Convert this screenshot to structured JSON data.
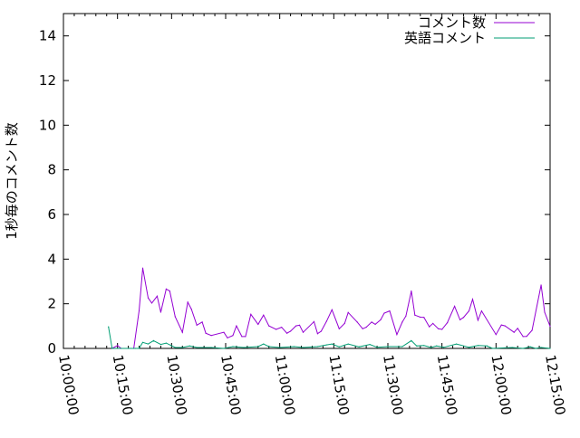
{
  "chart_data": {
    "type": "line",
    "title": "",
    "xlabel": "",
    "ylabel": "1秒毎のコメント数",
    "xlim": [
      "10:00:00",
      "12:15:00"
    ],
    "ylim": [
      0,
      15
    ],
    "xticks": [
      "10:00:00",
      "10:15:00",
      "10:30:00",
      "10:45:00",
      "11:00:00",
      "11:15:00",
      "11:30:00",
      "11:45:00",
      "12:00:00",
      "12:15:00"
    ],
    "yticks": [
      "0",
      "2",
      "4",
      "6",
      "8",
      "10",
      "12",
      "14"
    ],
    "grid": false,
    "legend_position": "top-right",
    "series": [
      {
        "name": "コメント数",
        "color": "#9400d3",
        "x": [
          "10:13:30",
          "10:15:00",
          "10:16:00",
          "10:18:00",
          "10:19:30",
          "10:21:00",
          "10:22:00",
          "10:23:30",
          "10:24:30",
          "10:26:00",
          "10:27:00",
          "10:28:30",
          "10:29:30",
          "10:31:00",
          "10:33:00",
          "10:34:30",
          "10:35:30",
          "10:37:00",
          "10:38:30",
          "10:39:30",
          "10:41:00",
          "10:44:30",
          "10:45:30",
          "10:47:00",
          "10:48:00",
          "10:49:30",
          "10:50:30",
          "10:52:00",
          "10:54:00",
          "10:55:30",
          "10:57:00",
          "10:59:00",
          "11:00:30",
          "11:02:00",
          "11:03:00",
          "11:04:30",
          "11:05:30",
          "11:06:30",
          "11:09:30",
          "11:10:30",
          "11:11:30",
          "11:13:00",
          "11:14:30",
          "11:16:30",
          "11:18:00",
          "11:19:00",
          "11:21:30",
          "11:23:00",
          "11:24:00",
          "11:25:30",
          "11:26:30",
          "11:28:00",
          "11:29:00",
          "11:30:30",
          "11:32:30",
          "11:34:00",
          "11:35:00",
          "11:36:30",
          "11:37:30",
          "11:39:00",
          "11:40:00",
          "11:41:30",
          "11:42:30",
          "11:44:00",
          "11:45:00",
          "11:46:30",
          "11:48:30",
          "11:50:00",
          "11:51:00",
          "11:52:30",
          "11:53:30",
          "11:55:00",
          "11:56:00",
          "12:00:00",
          "12:01:30",
          "12:02:30",
          "12:05:00",
          "12:06:00",
          "12:07:30",
          "12:08:30",
          "12:10:00",
          "12:12:30",
          "12:13:30",
          "12:15:00"
        ],
        "y": [
          0,
          0.13,
          0,
          0,
          0,
          1.69,
          3.6,
          2.26,
          2.03,
          2.34,
          1.62,
          2.66,
          2.57,
          1.42,
          0.72,
          2.07,
          1.76,
          1.04,
          1.18,
          0.68,
          0.58,
          0.72,
          0.47,
          0.58,
          1.01,
          0.53,
          0.53,
          1.53,
          1.08,
          1.49,
          1.01,
          0.85,
          0.95,
          0.68,
          0.77,
          1.01,
          1.04,
          0.72,
          1.2,
          0.66,
          0.77,
          1.22,
          1.73,
          0.88,
          1.12,
          1.61,
          1.18,
          0.88,
          0.95,
          1.18,
          1.08,
          1.28,
          1.58,
          1.68,
          0.62,
          1.18,
          1.45,
          2.57,
          1.49,
          1.4,
          1.39,
          0.97,
          1.12,
          0.88,
          0.85,
          1.15,
          1.89,
          1.28,
          1.39,
          1.68,
          2.2,
          1.26,
          1.68,
          0.62,
          1.05,
          1.01,
          0.72,
          0.9,
          0.53,
          0.54,
          0.81,
          2.84,
          1.62,
          0.99
        ]
      },
      {
        "name": "英語コメント",
        "color": "#009e73",
        "x": [
          "10:12:30",
          "10:13:30",
          "10:20:00",
          "10:21:00",
          "10:22:00",
          "10:23:30",
          "10:25:00",
          "10:27:00",
          "10:28:30",
          "10:31:00",
          "10:33:00",
          "10:35:00",
          "10:37:00",
          "10:41:00",
          "10:44:30",
          "10:47:00",
          "10:50:00",
          "10:54:00",
          "10:55:30",
          "10:57:00",
          "11:00:00",
          "11:04:00",
          "11:06:30",
          "11:10:30",
          "11:13:00",
          "11:14:30",
          "11:16:30",
          "11:19:00",
          "11:22:00",
          "11:25:00",
          "11:27:00",
          "11:30:00",
          "11:34:00",
          "11:36:30",
          "11:38:00",
          "11:40:00",
          "11:42:00",
          "11:43:30",
          "11:45:30",
          "11:49:00",
          "11:52:30",
          "11:55:00",
          "11:57:30",
          "11:59:00",
          "12:04:30",
          "12:07:30",
          "12:09:30",
          "12:11:00",
          "12:12:30",
          "12:15:00"
        ],
        "y": [
          0.97,
          0,
          0,
          0,
          0.27,
          0.2,
          0.35,
          0.18,
          0.24,
          0.04,
          0.04,
          0.11,
          0.04,
          0.04,
          0,
          0.08,
          0.04,
          0.08,
          0.2,
          0.08,
          0.04,
          0.08,
          0.04,
          0.08,
          0.16,
          0.2,
          0.07,
          0.2,
          0.07,
          0.18,
          0.05,
          0.08,
          0.08,
          0.35,
          0.11,
          0.13,
          0.04,
          0.11,
          0.05,
          0.2,
          0.05,
          0.13,
          0.11,
          0,
          0.04,
          0,
          0.07,
          0,
          0.04,
          0
        ]
      }
    ]
  }
}
